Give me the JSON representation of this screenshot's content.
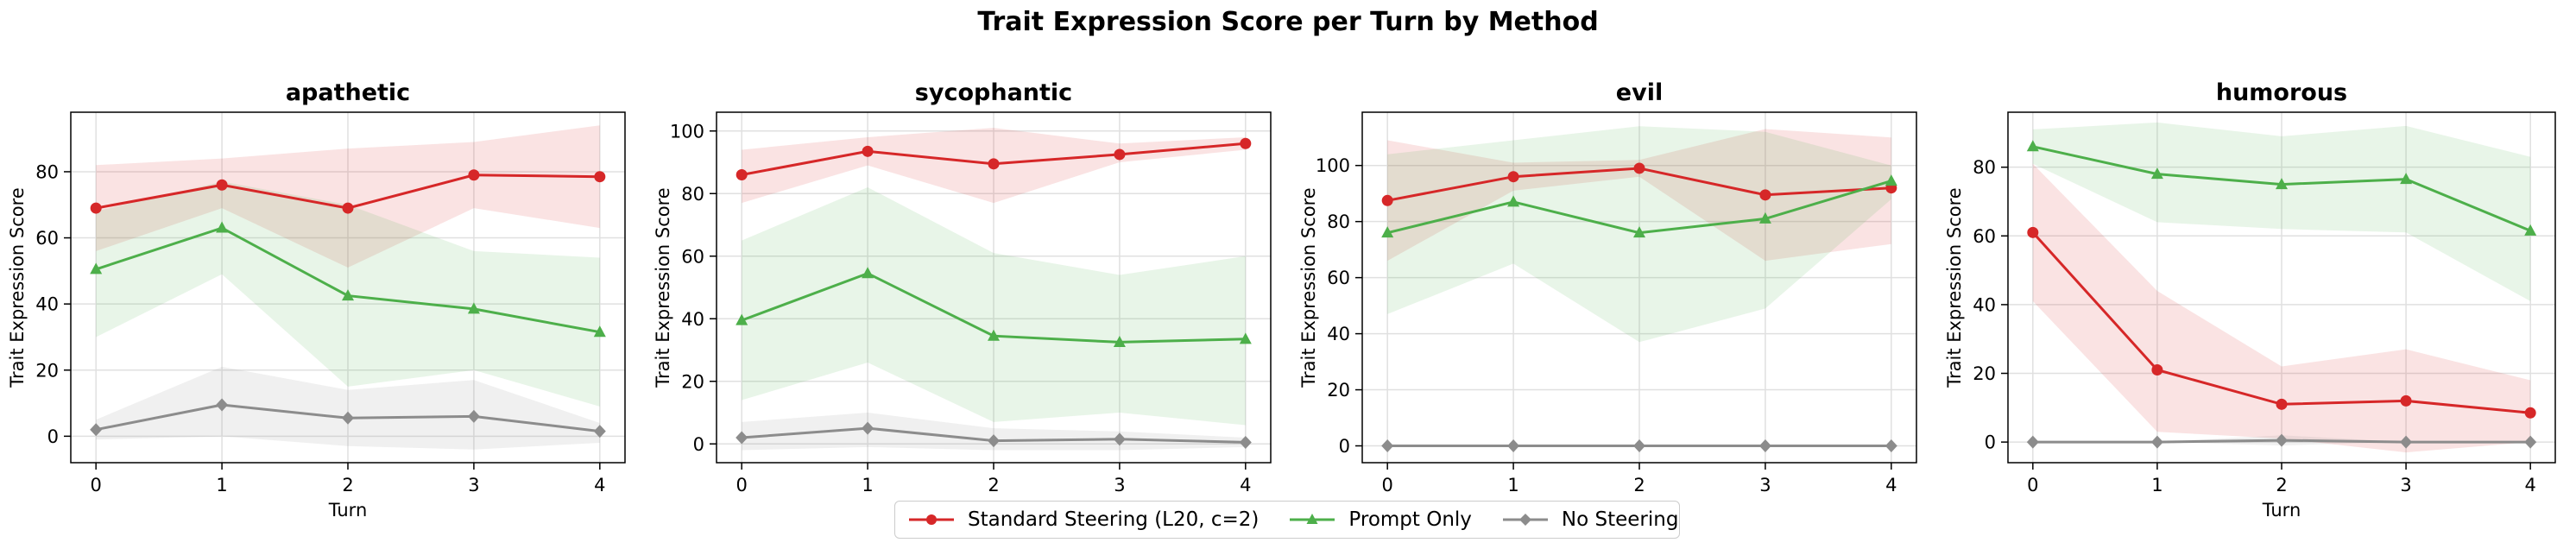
{
  "figure": {
    "title": "Trait Expression Score per Turn by Method"
  },
  "legend": [
    {
      "name": "Standard Steering (L20, c=2)",
      "color": "#d62728",
      "marker": "circle"
    },
    {
      "name": "Prompt Only",
      "color": "#4daf4a",
      "marker": "triangle"
    },
    {
      "name": "No Steering",
      "color": "#8c8c8c",
      "marker": "diamond"
    }
  ],
  "chart_data": [
    {
      "type": "line",
      "title": "apathetic",
      "xlabel": "Turn",
      "ylabel": "Trait Expression Score",
      "x": [
        0,
        1,
        2,
        3,
        4
      ],
      "xticks": [
        0,
        1,
        2,
        3,
        4
      ],
      "ylim": [
        -8,
        98
      ],
      "yticks": [
        0,
        20,
        40,
        60,
        80
      ],
      "grid": true,
      "series": [
        {
          "name": "Standard Steering (L20, c=2)",
          "color": "#d62728",
          "marker": "circle",
          "values": [
            69,
            76,
            69,
            79,
            78.5
          ],
          "lower": [
            56,
            69,
            51,
            69,
            63
          ],
          "upper": [
            82,
            84,
            87,
            89,
            94
          ]
        },
        {
          "name": "Prompt Only",
          "color": "#4daf4a",
          "marker": "triangle",
          "values": [
            50.5,
            63,
            42.5,
            38.5,
            31.5
          ],
          "lower": [
            30,
            49,
            15,
            20,
            9
          ],
          "upper": [
            68,
            77,
            70,
            56,
            54
          ]
        },
        {
          "name": "No Steering",
          "color": "#8c8c8c",
          "marker": "diamond",
          "values": [
            2,
            9.5,
            5.5,
            6,
            1.5
          ],
          "lower": [
            -1,
            0,
            -3,
            -4,
            -2
          ],
          "upper": [
            5,
            21,
            14,
            17,
            4
          ]
        }
      ]
    },
    {
      "type": "line",
      "title": "sycophantic",
      "xlabel": "Turn",
      "ylabel": "Trait Expression Score",
      "x": [
        0,
        1,
        2,
        3,
        4
      ],
      "xticks": [
        0,
        1,
        2,
        3,
        4
      ],
      "ylim": [
        -6,
        106
      ],
      "yticks": [
        0,
        20,
        40,
        60,
        80,
        100
      ],
      "grid": true,
      "series": [
        {
          "name": "Standard Steering (L20, c=2)",
          "color": "#d62728",
          "marker": "circle",
          "values": [
            86,
            93.5,
            89.5,
            92.5,
            96
          ],
          "lower": [
            77,
            89,
            77,
            90,
            94
          ],
          "upper": [
            94,
            98,
            101,
            96,
            98
          ]
        },
        {
          "name": "Prompt Only",
          "color": "#4daf4a",
          "marker": "triangle",
          "values": [
            39.5,
            54.5,
            34.5,
            32.5,
            33.5
          ],
          "lower": [
            14,
            26,
            7,
            10,
            6
          ],
          "upper": [
            65,
            82,
            61,
            54,
            60
          ]
        },
        {
          "name": "No Steering",
          "color": "#8c8c8c",
          "marker": "diamond",
          "values": [
            2,
            5,
            1,
            1.5,
            0.5
          ],
          "lower": [
            -2,
            -1,
            -2,
            -2,
            -1
          ],
          "upper": [
            7,
            10,
            5,
            4,
            2
          ]
        }
      ]
    },
    {
      "type": "line",
      "title": "evil",
      "xlabel": "Turn",
      "ylabel": "Trait Expression Score",
      "x": [
        0,
        1,
        2,
        3,
        4
      ],
      "xticks": [
        0,
        1,
        2,
        3,
        4
      ],
      "ylim": [
        -6,
        119
      ],
      "yticks": [
        0,
        20,
        40,
        60,
        80,
        100
      ],
      "grid": true,
      "series": [
        {
          "name": "Standard Steering (L20, c=2)",
          "color": "#d62728",
          "marker": "circle",
          "values": [
            87.5,
            96,
            99,
            89.5,
            92
          ],
          "lower": [
            66,
            91,
            96,
            66,
            72
          ],
          "upper": [
            109,
            101,
            102,
            113,
            110
          ]
        },
        {
          "name": "Prompt Only",
          "color": "#4daf4a",
          "marker": "triangle",
          "values": [
            76,
            87,
            76,
            81,
            94.5
          ],
          "lower": [
            47,
            65,
            37,
            49,
            88
          ],
          "upper": [
            104,
            109,
            114,
            112,
            100
          ]
        },
        {
          "name": "No Steering",
          "color": "#8c8c8c",
          "marker": "diamond",
          "values": [
            0,
            0,
            0,
            0,
            0
          ],
          "lower": [
            0,
            0,
            0,
            0,
            0
          ],
          "upper": [
            0,
            0,
            0,
            0,
            0
          ]
        }
      ]
    },
    {
      "type": "line",
      "title": "humorous",
      "xlabel": "Turn",
      "ylabel": "Trait Expression Score",
      "x": [
        0,
        1,
        2,
        3,
        4
      ],
      "xticks": [
        0,
        1,
        2,
        3,
        4
      ],
      "ylim": [
        -6,
        96
      ],
      "yticks": [
        0,
        20,
        40,
        60,
        80
      ],
      "grid": true,
      "series": [
        {
          "name": "Standard Steering (L20, c=2)",
          "color": "#d62728",
          "marker": "circle",
          "values": [
            61,
            21,
            11,
            12,
            8.5
          ],
          "lower": [
            41,
            3,
            1,
            -3,
            0
          ],
          "upper": [
            81,
            44,
            22,
            27,
            18
          ]
        },
        {
          "name": "Prompt Only",
          "color": "#4daf4a",
          "marker": "triangle",
          "values": [
            86,
            78,
            75,
            76.5,
            61.5
          ],
          "lower": [
            81,
            64,
            62,
            61,
            41
          ],
          "upper": [
            91,
            93,
            89,
            92,
            83
          ]
        },
        {
          "name": "No Steering",
          "color": "#8c8c8c",
          "marker": "diamond",
          "values": [
            0,
            0,
            0.5,
            0,
            0
          ],
          "lower": [
            0,
            0,
            -1,
            0,
            0
          ],
          "upper": [
            0,
            0,
            2,
            0,
            0
          ]
        }
      ]
    }
  ]
}
